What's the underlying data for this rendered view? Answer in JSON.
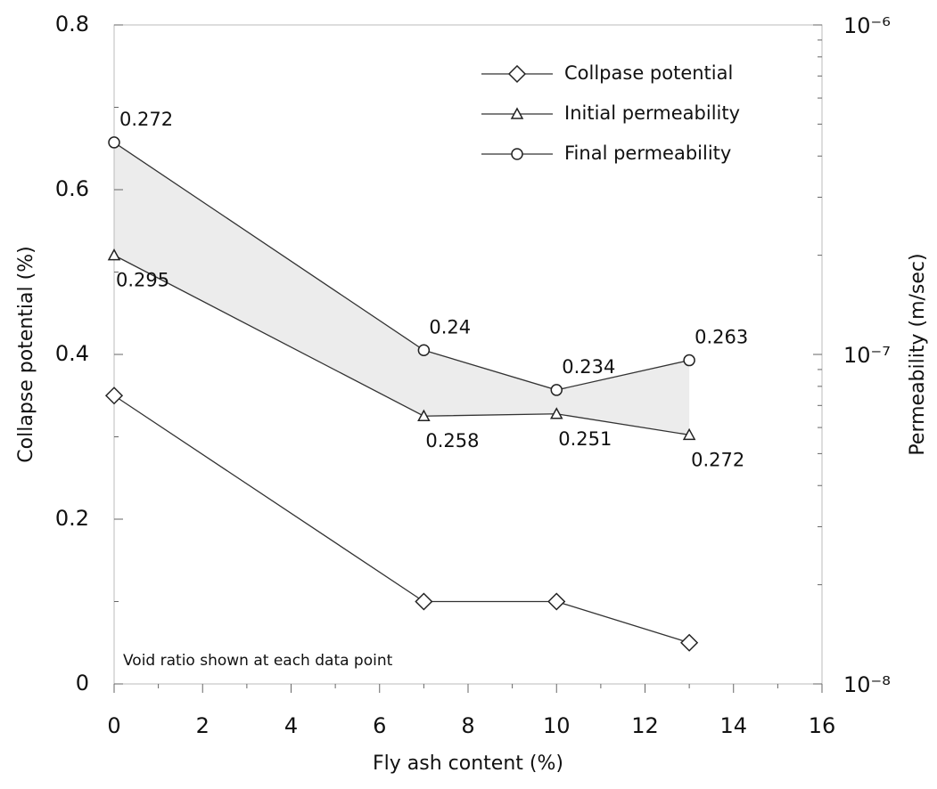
{
  "chart_data": {
    "type": "line",
    "x_label": "Fly ash content (%)",
    "y_label": "Collapse potential (%)",
    "y2_label": "Permeability (m/sec)",
    "annotation": "Void ratio shown at each data point",
    "xlim": [
      0,
      16
    ],
    "xticks": [
      0,
      2,
      4,
      6,
      8,
      10,
      12,
      14,
      16
    ],
    "ylim": [
      0,
      0.8
    ],
    "yticks": [
      0,
      0.2,
      0.4,
      0.6,
      0.8
    ],
    "y2lim": [
      1e-08,
      1e-06
    ],
    "y2_log": true,
    "y2ticks": [
      {
        "value": 1e-08,
        "label": "10⁻⁸"
      },
      {
        "value": 1e-07,
        "label": "10⁻⁷"
      },
      {
        "value": 1e-06,
        "label": "10⁻⁶"
      }
    ],
    "legend": "upper right",
    "series": [
      {
        "name": "Collpase potential",
        "color": "#333333",
        "marker": "diamond",
        "x": [
          0,
          7,
          10,
          13
        ],
        "values": [
          0.35,
          0.1,
          0.1,
          0.05
        ]
      },
      {
        "name": "Initial permeability",
        "color": "#333333",
        "marker": "triangle",
        "axis": "y2",
        "x": [
          0,
          7,
          10,
          13
        ],
        "values": [
          2e-07,
          6.5e-08,
          6.6e-08,
          5.7e-08
        ],
        "point_labels": [
          "0.295",
          "0.258",
          "0.251",
          "0.272"
        ]
      },
      {
        "name": "Final permeability",
        "color": "#333333",
        "marker": "circle",
        "axis": "y2",
        "x": [
          0,
          7,
          10,
          13
        ],
        "values": [
          4.4e-07,
          1.03e-07,
          7.8e-08,
          9.6e-08
        ],
        "point_labels": [
          "0.272",
          "0.24",
          "0.234",
          "0.263"
        ]
      }
    ]
  }
}
